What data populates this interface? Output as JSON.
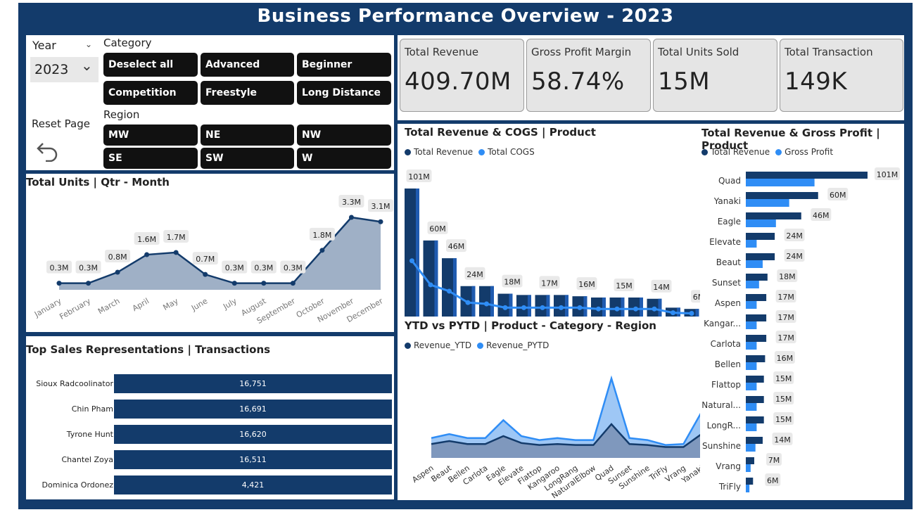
{
  "title": "Business Performance Overview - 2023",
  "filters": {
    "year_label": "Year",
    "year_value": "2023",
    "category_label": "Category",
    "categories": [
      "Deselect all",
      "Advanced",
      "Beginner",
      "Competition",
      "Freestyle",
      "Long Distance"
    ],
    "region_label": "Region",
    "regions": [
      "MW",
      "NE",
      "NW",
      "SE",
      "SW",
      "W"
    ],
    "reset_label": "Reset Page"
  },
  "kpis": [
    {
      "label": "Total Revenue",
      "value": "409.70M"
    },
    {
      "label": "Gross Profit Margin",
      "value": "58.74%"
    },
    {
      "label": "Total Units Sold",
      "value": "15M"
    },
    {
      "label": "Total Transaction",
      "value": "149K"
    }
  ],
  "units_chart": {
    "title": "Total Units | Qtr - Month",
    "chart_data": {
      "type": "area",
      "categories": [
        "January",
        "February",
        "March",
        "April",
        "May",
        "June",
        "July",
        "August",
        "September",
        "October",
        "November",
        "December"
      ],
      "values": [
        0.3,
        0.3,
        0.8,
        1.6,
        1.7,
        0.7,
        0.3,
        0.3,
        0.3,
        1.8,
        3.3,
        3.1
      ],
      "labels": [
        "0.3M",
        "0.3M",
        "0.8M",
        "1.6M",
        "1.7M",
        "0.7M",
        "0.3M",
        "0.3M",
        "0.3M",
        "1.8M",
        "3.3M",
        "3.1M"
      ],
      "color": "#133b6b"
    }
  },
  "reps": {
    "title": "Top Sales Representations | Transactions",
    "rows": [
      {
        "name": "Sioux Radcoolinator",
        "value": "16,751"
      },
      {
        "name": "Chin Pham",
        "value": "16,691"
      },
      {
        "name": "Tyrone Hunt",
        "value": "16,620"
      },
      {
        "name": "Chantel Zoya",
        "value": "16,511"
      },
      {
        "name": "Dominica Ordonez",
        "value": "4,421"
      }
    ]
  },
  "rev_cogs": {
    "title": "Total Revenue & COGS | Product",
    "legend": [
      {
        "name": "Total Revenue",
        "color": "#133b6b"
      },
      {
        "name": "Total COGS",
        "color": "#2f8df5"
      }
    ],
    "chart_data": {
      "type": "bar",
      "revenue": [
        101,
        60,
        46,
        24,
        24,
        18,
        17,
        17,
        17,
        16,
        15,
        15,
        15,
        14,
        7,
        6
      ],
      "cogs": [
        44,
        25,
        20,
        11,
        10,
        7,
        7,
        7,
        7,
        7,
        6,
        6,
        6,
        6,
        3,
        2.5
      ],
      "labels": [
        "101M",
        "60M",
        "46M",
        "24M",
        "",
        "18M",
        "",
        "17M",
        "",
        "16M",
        "",
        "15M",
        "",
        "14M",
        "",
        "6M"
      ]
    }
  },
  "ytd": {
    "title": "YTD vs PYTD | Product - Category - Region",
    "legend": [
      {
        "name": "Revenue_YTD",
        "color": "#133b6b"
      },
      {
        "name": "Revenue_PYTD",
        "color": "#2f8df5"
      }
    ],
    "chart_data": {
      "type": "area",
      "categories": [
        "Aspen",
        "Beaut",
        "Bellen",
        "Carlota",
        "Eagle",
        "Elevate",
        "Flattop",
        "Kangaroo",
        "LongRang",
        "NaturalElbow",
        "Quad",
        "Sunset",
        "Sunshine",
        "TriFly",
        "Vrang",
        "Yanaki"
      ],
      "ytd": [
        14,
        17,
        14,
        14,
        22,
        15,
        13,
        14,
        13,
        13,
        34,
        14,
        13,
        11,
        11,
        24
      ],
      "pytd": [
        20,
        24,
        20,
        20,
        38,
        22,
        18,
        20,
        18,
        18,
        80,
        20,
        18,
        13,
        14,
        46
      ]
    }
  },
  "rev_gp": {
    "title": "Total Revenue & Gross Profit | Product",
    "legend": [
      {
        "name": "Total Revenue",
        "color": "#133b6b"
      },
      {
        "name": "Gross Profit",
        "color": "#2f8df5"
      }
    ],
    "chart_data": {
      "type": "bar",
      "products": [
        "Quad",
        "Yanaki",
        "Eagle",
        "Elevate",
        "Beaut",
        "Sunset",
        "Aspen",
        "Kangar...",
        "Carlota",
        "Bellen",
        "Flattop",
        "Natural...",
        "LongR...",
        "Sunshine",
        "Vrang",
        "TriFly"
      ],
      "revenue": [
        101,
        60,
        46,
        24,
        24,
        18,
        17,
        17,
        17,
        16,
        15,
        15,
        15,
        14,
        7,
        6
      ],
      "profit": [
        57,
        36,
        25,
        9,
        14,
        11,
        9,
        9,
        9,
        9,
        9,
        9,
        9,
        8,
        4,
        3
      ],
      "labels": [
        "101M",
        "60M",
        "46M",
        "24M",
        "24M",
        "18M",
        "17M",
        "17M",
        "17M",
        "16M",
        "15M",
        "15M",
        "15M",
        "14M",
        "7M",
        "6M"
      ]
    }
  }
}
